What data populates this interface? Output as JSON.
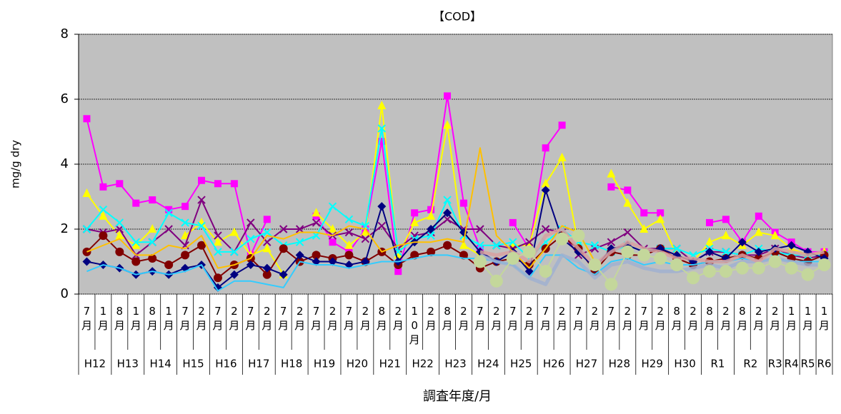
{
  "chart_data": {
    "type": "line",
    "title": "【COD】",
    "y_label": "mg/g dry",
    "x_label": "調査年度/月",
    "categories": [
      "7月",
      "1月",
      "8月",
      "1月",
      "8月",
      "1月",
      "7月",
      "2月",
      "7月",
      "2月",
      "7月",
      "2月",
      "7月",
      "2月",
      "7月",
      "2月",
      "7月",
      "2月",
      "8月",
      "2月",
      "10月",
      "2月",
      "8月",
      "2月",
      "7月",
      "2月",
      "7月",
      "2月",
      "7月",
      "2月",
      "7月",
      "2月",
      "7月",
      "2月",
      "7月",
      "2月",
      "8月",
      "2月",
      "8月",
      "2月",
      "8月",
      "2月",
      "2月",
      "1月",
      "1月",
      "1月"
    ],
    "category_years": [
      "H12",
      "H12",
      "H13",
      "H13",
      "H14",
      "H14",
      "H15",
      "H15",
      "H16",
      "H16",
      "H17",
      "H17",
      "H18",
      "H18",
      "H19",
      "H19",
      "H20",
      "H20",
      "H21",
      "H21",
      "H22",
      "H22",
      "H23",
      "H23",
      "H24",
      "H24",
      "H25",
      "H25",
      "H26",
      "H26",
      "H27",
      "H27",
      "H28",
      "H28",
      "H29",
      "H29",
      "H30",
      "H30",
      "R1",
      "R1",
      "R2",
      "R2",
      "R3",
      "R4",
      "R5",
      "R6"
    ],
    "ylim": [
      0,
      8
    ],
    "yticks": [
      0,
      2,
      4,
      6,
      8
    ],
    "grid": true,
    "background": "#c0c0c0",
    "series": [
      {
        "color": "#ff00ff",
        "marker": "square",
        "values": [
          5.4,
          3.3,
          3.4,
          2.8,
          2.9,
          2.6,
          2.7,
          3.5,
          3.4,
          3.4,
          1.2,
          2.3,
          null,
          null,
          2.4,
          1.6,
          1.3,
          2.0,
          4.7,
          0.7,
          2.5,
          2.6,
          6.1,
          2.8,
          1.4,
          null,
          2.2,
          1.4,
          4.5,
          5.2,
          null,
          null,
          3.3,
          3.2,
          2.5,
          2.5,
          null,
          null,
          2.2,
          2.3,
          1.6,
          2.4,
          1.9,
          1.6,
          1.3,
          1.3
        ]
      },
      {
        "color": "#ffff00",
        "marker": "triangle",
        "values": [
          3.1,
          2.4,
          1.8,
          1.5,
          2.0,
          null,
          1.8,
          2.2,
          1.6,
          1.9,
          1.2,
          1.4,
          0.6,
          null,
          2.5,
          2.0,
          1.5,
          1.9,
          5.8,
          1.2,
          2.2,
          2.4,
          5.2,
          1.5,
          1.2,
          null,
          1.5,
          1.5,
          3.4,
          4.2,
          1.5,
          null,
          3.7,
          2.8,
          2.0,
          2.3,
          1.2,
          1.0,
          1.6,
          1.8,
          1.5,
          1.9,
          1.8,
          1.4,
          1.2,
          1.3
        ]
      },
      {
        "color": "#800080",
        "marker": "x",
        "values": [
          2.0,
          1.9,
          2.0,
          1.2,
          1.6,
          2.0,
          1.5,
          2.9,
          1.8,
          1.3,
          2.2,
          1.6,
          2.0,
          2.0,
          2.2,
          1.8,
          1.9,
          1.7,
          2.1,
          1.4,
          1.8,
          1.9,
          2.3,
          2.0,
          2.0,
          1.5,
          1.4,
          1.6,
          2.0,
          1.9,
          1.2,
          1.4,
          1.6,
          1.9,
          1.4,
          1.4,
          1.4,
          1.0,
          1.3,
          1.3,
          1.2,
          1.2,
          1.4,
          1.2,
          1.1,
          1.2
        ]
      },
      {
        "color": "#00ffff",
        "marker": "x",
        "values": [
          2.0,
          2.6,
          2.2,
          1.6,
          1.6,
          2.5,
          2.2,
          2.1,
          1.3,
          1.3,
          1.7,
          1.9,
          1.5,
          1.6,
          1.8,
          2.7,
          2.3,
          2.1,
          5.1,
          1.3,
          1.7,
          1.8,
          2.9,
          1.8,
          1.5,
          1.5,
          1.6,
          1.1,
          1.6,
          2.0,
          1.6,
          1.5,
          1.3,
          1.5,
          1.3,
          1.4,
          1.4,
          1.2,
          1.4,
          1.3,
          1.2,
          1.4,
          1.3,
          1.2,
          1.2,
          1.2
        ]
      },
      {
        "color": "#800000",
        "marker": "circle",
        "values": [
          1.3,
          1.8,
          1.3,
          1.0,
          1.1,
          0.9,
          1.2,
          1.5,
          0.5,
          0.9,
          1.1,
          0.6,
          1.4,
          1.0,
          1.2,
          1.1,
          1.2,
          1.0,
          1.3,
          0.9,
          1.2,
          1.3,
          1.5,
          1.2,
          0.8,
          1.0,
          1.1,
          0.9,
          1.4,
          1.8,
          1.4,
          0.7,
          1.3,
          1.2,
          1.2,
          1.4,
          1.1,
          0.9,
          1.0,
          1.1,
          1.2,
          1.1,
          1.3,
          1.1,
          1.0,
          1.2
        ]
      },
      {
        "color": "#000080",
        "marker": "diamond",
        "values": [
          1.0,
          0.9,
          0.8,
          0.6,
          0.7,
          0.6,
          0.8,
          0.9,
          0.2,
          0.6,
          0.9,
          0.8,
          0.6,
          1.2,
          1.0,
          1.0,
          0.9,
          1.0,
          2.7,
          1.0,
          1.6,
          2.0,
          2.5,
          1.9,
          1.3,
          1.0,
          1.3,
          0.7,
          3.2,
          1.7,
          1.3,
          0.8,
          1.4,
          1.5,
          1.3,
          1.4,
          1.2,
          1.0,
          1.3,
          1.1,
          1.6,
          1.3,
          1.4,
          1.5,
          1.3,
          1.1
        ]
      },
      {
        "color": "#ffc000",
        "marker": "none",
        "values": [
          1.3,
          1.5,
          1.7,
          1.2,
          1.2,
          1.5,
          1.4,
          1.8,
          0.8,
          0.9,
          1.1,
          1.8,
          1.7,
          1.9,
          1.9,
          1.8,
          2.1,
          2.0,
          1.3,
          1.5,
          1.6,
          1.6,
          1.7,
          1.6,
          4.5,
          1.8,
          1.3,
          0.8,
          1.4,
          2.1,
          1.9,
          1.0,
          null,
          null,
          null,
          null,
          null,
          null,
          null,
          null,
          null,
          null,
          null,
          null,
          null,
          null
        ]
      },
      {
        "color": "#33ccff",
        "marker": "none",
        "values": [
          0.7,
          0.9,
          0.8,
          0.6,
          0.7,
          0.6,
          0.7,
          0.9,
          0.1,
          0.4,
          0.4,
          0.3,
          0.2,
          1.0,
          0.9,
          0.9,
          0.8,
          0.9,
          1.0,
          1.0,
          1.1,
          1.2,
          1.2,
          1.1,
          1.1,
          1.0,
          0.9,
          0.5,
          1.2,
          1.2,
          0.8,
          0.6,
          1.0,
          1.1,
          0.9,
          1.0,
          0.9,
          0.9,
          1.0,
          1.0,
          1.1,
          1.0,
          1.1,
          1.0,
          1.0,
          1.0
        ]
      },
      {
        "color": "#a0b0d0",
        "marker": "none",
        "style": "thick",
        "values": [
          null,
          null,
          null,
          null,
          null,
          null,
          null,
          null,
          null,
          null,
          null,
          null,
          null,
          null,
          null,
          null,
          null,
          null,
          null,
          null,
          null,
          null,
          null,
          null,
          1.2,
          1.0,
          0.9,
          0.5,
          0.3,
          1.2,
          1.0,
          0.5,
          0.9,
          1.0,
          0.8,
          0.7,
          0.7,
          0.8,
          0.9,
          0.8,
          1.0,
          1.0,
          1.1,
          1.0,
          0.9,
          0.9
        ]
      },
      {
        "color": "#d8a0a0",
        "marker": "none",
        "style": "thick",
        "values": [
          null,
          null,
          null,
          null,
          null,
          null,
          null,
          null,
          null,
          null,
          null,
          null,
          null,
          null,
          null,
          null,
          null,
          null,
          null,
          null,
          null,
          null,
          null,
          null,
          1.3,
          1.2,
          1.3,
          1.0,
          1.8,
          2.0,
          1.4,
          0.9,
          1.3,
          1.6,
          1.4,
          1.3,
          1.1,
          1.1,
          1.0,
          1.0,
          1.2,
          1.0,
          1.4,
          1.3,
          1.2,
          1.3
        ]
      },
      {
        "color": "#c4d79b",
        "marker": "bigcircle",
        "values": [
          null,
          null,
          null,
          null,
          null,
          null,
          null,
          null,
          null,
          null,
          null,
          null,
          null,
          null,
          null,
          null,
          null,
          null,
          null,
          null,
          null,
          null,
          null,
          null,
          1.0,
          0.4,
          1.1,
          1.3,
          0.7,
          1.7,
          1.8,
          0.9,
          0.3,
          1.3,
          1.2,
          1.1,
          0.9,
          0.5,
          0.7,
          0.7,
          0.8,
          0.8,
          1.0,
          0.8,
          0.6,
          0.9
        ]
      }
    ]
  }
}
